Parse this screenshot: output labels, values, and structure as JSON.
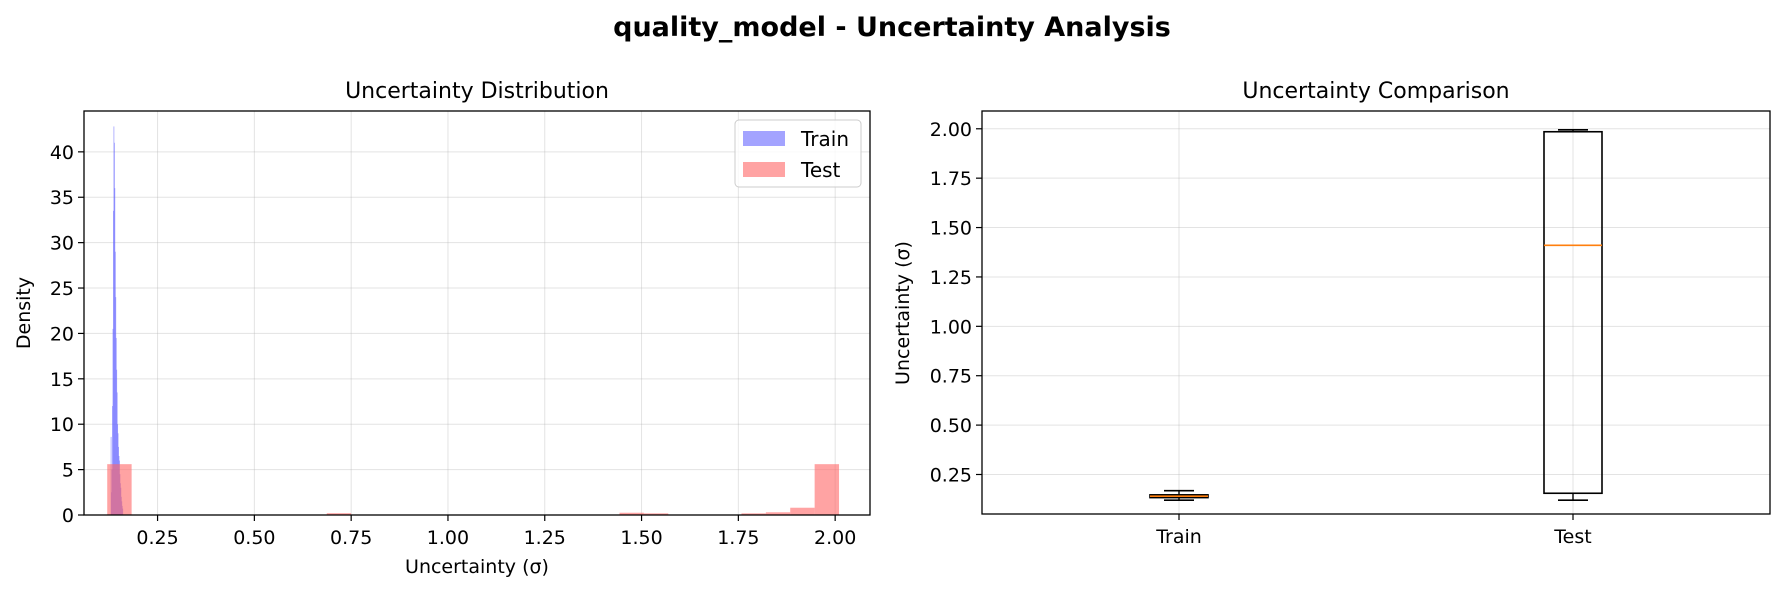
{
  "figure": {
    "title": "quality_model - Uncertainty Analysis"
  },
  "chart_data": [
    {
      "type": "histogram",
      "title": "Uncertainty Distribution",
      "xlabel": "Uncertainty (σ)",
      "ylabel": "Density",
      "xlim": [
        0.06,
        2.09
      ],
      "ylim": [
        0,
        44.5
      ],
      "xticks": [
        0.25,
        0.5,
        0.75,
        1.0,
        1.25,
        1.5,
        1.75,
        2.0
      ],
      "xtick_labels": [
        "0.25",
        "0.50",
        "0.75",
        "1.00",
        "1.25",
        "1.50",
        "1.75",
        "2.00"
      ],
      "yticks": [
        0,
        5,
        10,
        15,
        20,
        25,
        30,
        35,
        40
      ],
      "ytick_labels": [
        "0",
        "5",
        "10",
        "15",
        "20",
        "25",
        "30",
        "35",
        "40"
      ],
      "grid": true,
      "legend_position": "top-right",
      "series": [
        {
          "name": "Train",
          "color": "#6666ff",
          "opacity": 0.6,
          "bins": [
            [
              0.129,
              0.1302,
              8.6
            ],
            [
              0.1302,
              0.1314,
              2.5
            ],
            [
              0.1314,
              0.1326,
              5.0
            ],
            [
              0.1326,
              0.1338,
              12.0
            ],
            [
              0.1338,
              0.135,
              20.5
            ],
            [
              0.135,
              0.1362,
              33.5
            ],
            [
              0.1362,
              0.1374,
              42.8
            ],
            [
              0.1374,
              0.1386,
              41.0
            ],
            [
              0.1386,
              0.1398,
              36.0
            ],
            [
              0.1398,
              0.141,
              29.0
            ],
            [
              0.141,
              0.1422,
              24.0
            ],
            [
              0.1422,
              0.1434,
              19.5
            ],
            [
              0.1434,
              0.1446,
              16.0
            ],
            [
              0.1446,
              0.1458,
              13.5
            ],
            [
              0.1458,
              0.147,
              10.0
            ],
            [
              0.147,
              0.1482,
              9.0
            ],
            [
              0.1482,
              0.1494,
              7.5
            ],
            [
              0.1494,
              0.1506,
              6.5
            ],
            [
              0.1506,
              0.1518,
              6.0
            ],
            [
              0.1518,
              0.153,
              4.5
            ],
            [
              0.153,
              0.1542,
              3.5
            ],
            [
              0.1542,
              0.1554,
              3.0
            ],
            [
              0.1554,
              0.1566,
              2.0
            ],
            [
              0.1566,
              0.1578,
              1.5
            ],
            [
              0.1578,
              0.159,
              1.0
            ],
            [
              0.159,
              0.1602,
              0.7
            ]
          ]
        },
        {
          "name": "Test",
          "color": "#ff6666",
          "opacity": 0.6,
          "bins": [
            [
              0.12,
              0.183,
              5.6
            ],
            [
              0.183,
              0.246,
              0.0
            ],
            [
              0.246,
              0.309,
              0.0
            ],
            [
              0.309,
              0.372,
              0.0
            ],
            [
              0.372,
              0.435,
              0.0
            ],
            [
              0.435,
              0.498,
              0.0
            ],
            [
              0.498,
              0.561,
              0.0
            ],
            [
              0.561,
              0.624,
              0.0
            ],
            [
              0.624,
              0.687,
              0.0
            ],
            [
              0.687,
              0.75,
              0.2
            ],
            [
              0.75,
              0.813,
              0.0
            ],
            [
              0.813,
              0.876,
              0.0
            ],
            [
              0.876,
              0.939,
              0.0
            ],
            [
              0.939,
              1.002,
              0.0
            ],
            [
              1.002,
              1.065,
              0.0
            ],
            [
              1.065,
              1.128,
              0.0
            ],
            [
              1.128,
              1.191,
              0.0
            ],
            [
              1.191,
              1.254,
              0.0
            ],
            [
              1.254,
              1.317,
              0.0
            ],
            [
              1.317,
              1.38,
              0.0
            ],
            [
              1.38,
              1.443,
              0.0
            ],
            [
              1.443,
              1.506,
              0.25
            ],
            [
              1.506,
              1.569,
              0.18
            ],
            [
              1.569,
              1.632,
              0.0
            ],
            [
              1.632,
              1.695,
              0.0
            ],
            [
              1.695,
              1.758,
              0.0
            ],
            [
              1.758,
              1.821,
              0.18
            ],
            [
              1.821,
              1.884,
              0.3
            ],
            [
              1.884,
              1.947,
              0.8
            ],
            [
              1.947,
              2.01,
              5.6
            ]
          ]
        }
      ]
    },
    {
      "type": "box",
      "title": "Uncertainty Comparison",
      "xlabel": "",
      "ylabel": "Uncertainty (σ)",
      "ylim": [
        0.05,
        2.09
      ],
      "yticks": [
        0.25,
        0.5,
        0.75,
        1.0,
        1.25,
        1.5,
        1.75,
        2.0
      ],
      "ytick_labels": [
        "0.25",
        "0.50",
        "0.75",
        "1.00",
        "1.25",
        "1.50",
        "1.75",
        "2.00"
      ],
      "categories": [
        "Train",
        "Test"
      ],
      "grid": true,
      "median_color": "#ff7f0e",
      "boxes": [
        {
          "category": "Train",
          "whislo": 0.12,
          "q1": 0.133,
          "med": 0.14,
          "q3": 0.147,
          "whishi": 0.168
        },
        {
          "category": "Test",
          "whislo": 0.12,
          "q1": 0.155,
          "med": 1.41,
          "q3": 1.985,
          "whishi": 1.995
        }
      ]
    }
  ]
}
